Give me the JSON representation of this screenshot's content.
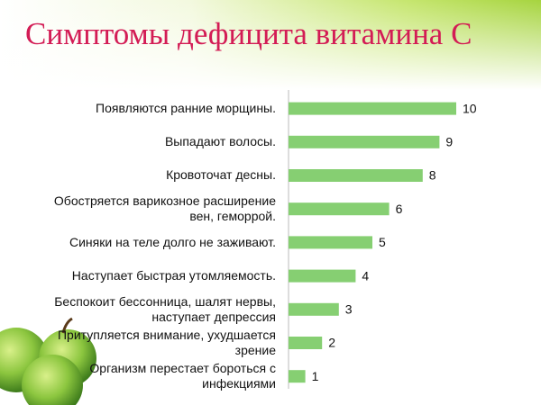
{
  "chart_data": {
    "type": "bar",
    "orientation": "horizontal",
    "title": "Симптомы дефицита витамина С",
    "categories": [
      "Появляются ранние морщины.",
      "Выпадают волосы.",
      "Кровоточат десны.",
      "Обостряется варикозное расширение вен, геморрой.",
      "Синяки на теле долго не заживают.",
      "Наступает быстрая утомляемость.",
      "Беспокоит бессонница, шалят нервы, наступает депрессия",
      "Притупляется внимание, ухудшается зрение",
      "Организм перестает бороться с инфекциями"
    ],
    "values": [
      10,
      9,
      8,
      6,
      5,
      4,
      3,
      2,
      1
    ],
    "color": "#86cf72"
  }
}
